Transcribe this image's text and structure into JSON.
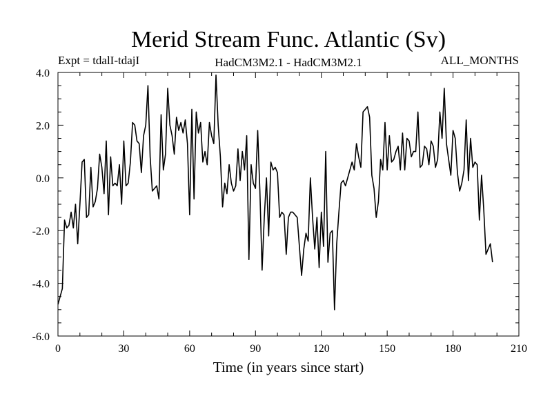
{
  "chart_data": {
    "type": "line",
    "title": "Merid Stream Func. Atlantic (Sv)",
    "subtitle_left": "Expt = tdalI-tdajI",
    "subtitle_center": "HadCM3M2.1 - HadCM3M2.1",
    "subtitle_right": "ALL_MONTHS",
    "xlabel": "Time (in years since start)",
    "ylabel": "",
    "xlim": [
      0,
      210
    ],
    "ylim": [
      -6,
      4
    ],
    "x_ticks": [
      0,
      30,
      60,
      90,
      120,
      150,
      180,
      210
    ],
    "x_tick_labels": [
      "0",
      "30",
      "60",
      "90",
      "120",
      "150",
      "180",
      "210"
    ],
    "y_ticks": [
      -6,
      -4,
      -2,
      0,
      2,
      4
    ],
    "y_tick_labels": [
      "-6.0",
      "-4.0",
      "-2.0",
      "0.0",
      "2.0",
      "4.0"
    ],
    "grid": false,
    "series": [
      {
        "name": "tdalI-tdajI",
        "x_start": 0,
        "x_step": 1,
        "values": [
          -4.8,
          -4.5,
          -4.2,
          -1.6,
          -1.9,
          -1.8,
          -1.3,
          -1.9,
          -1.0,
          -2.5,
          -1.0,
          0.6,
          0.7,
          -1.5,
          -1.4,
          0.4,
          -1.1,
          -0.9,
          -0.4,
          0.9,
          0.4,
          -0.6,
          1.4,
          -1.4,
          0.8,
          -0.3,
          -0.2,
          -0.3,
          0.5,
          -1.0,
          1.4,
          -0.3,
          -0.2,
          0.6,
          2.1,
          2.0,
          1.4,
          1.3,
          0.2,
          1.6,
          2.0,
          3.5,
          0.8,
          -0.5,
          -0.4,
          -0.3,
          -0.8,
          2.4,
          0.3,
          0.9,
          3.4,
          2.0,
          1.6,
          0.9,
          2.3,
          1.8,
          2.1,
          1.7,
          2.2,
          1.3,
          -1.4,
          2.6,
          -0.8,
          2.5,
          1.7,
          2.1,
          0.6,
          1.0,
          0.5,
          2.1,
          1.6,
          1.3,
          3.9,
          2.0,
          0.8,
          -1.1,
          -0.2,
          -0.6,
          0.5,
          -0.2,
          -0.5,
          -0.3,
          1.1,
          -0.1,
          1.0,
          0.3,
          1.6,
          -3.1,
          0.5,
          -0.2,
          -0.4,
          1.8,
          -0.5,
          -3.5,
          -1.5,
          0.0,
          -2.2,
          0.6,
          0.3,
          0.4,
          0.2,
          -1.5,
          -1.3,
          -1.4,
          -2.9,
          -1.5,
          -1.3,
          -1.3,
          -1.4,
          -1.5,
          -2.6,
          -3.7,
          -2.7,
          -2.1,
          -2.4,
          0.0,
          -1.5,
          -2.7,
          -1.5,
          -3.4,
          -1.3,
          -2.6,
          1.0,
          -3.2,
          -2.1,
          -2.0,
          -5.0,
          -2.5,
          -1.3,
          -0.2,
          -0.1,
          -0.3,
          0.0,
          0.3,
          0.6,
          0.3,
          1.3,
          0.8,
          0.4,
          2.5,
          2.6,
          2.7,
          2.3,
          0.1,
          -0.4,
          -1.5,
          -0.9,
          0.7,
          0.3,
          2.1,
          0.3,
          1.6,
          0.6,
          0.7,
          1.0,
          1.2,
          0.3,
          1.7,
          0.3,
          1.5,
          1.4,
          0.8,
          1.0,
          1.0,
          2.5,
          0.4,
          0.5,
          1.2,
          1.1,
          0.5,
          1.4,
          1.2,
          0.4,
          0.7,
          2.5,
          1.5,
          3.4,
          1.3,
          0.7,
          0.1,
          1.8,
          1.5,
          0.2,
          -0.5,
          -0.2,
          0.3,
          2.2,
          -0.1,
          1.5,
          0.4,
          0.6,
          0.5,
          -1.6,
          0.1,
          -1.2,
          -2.9,
          -2.7,
          -2.5,
          -3.2
        ]
      }
    ]
  }
}
